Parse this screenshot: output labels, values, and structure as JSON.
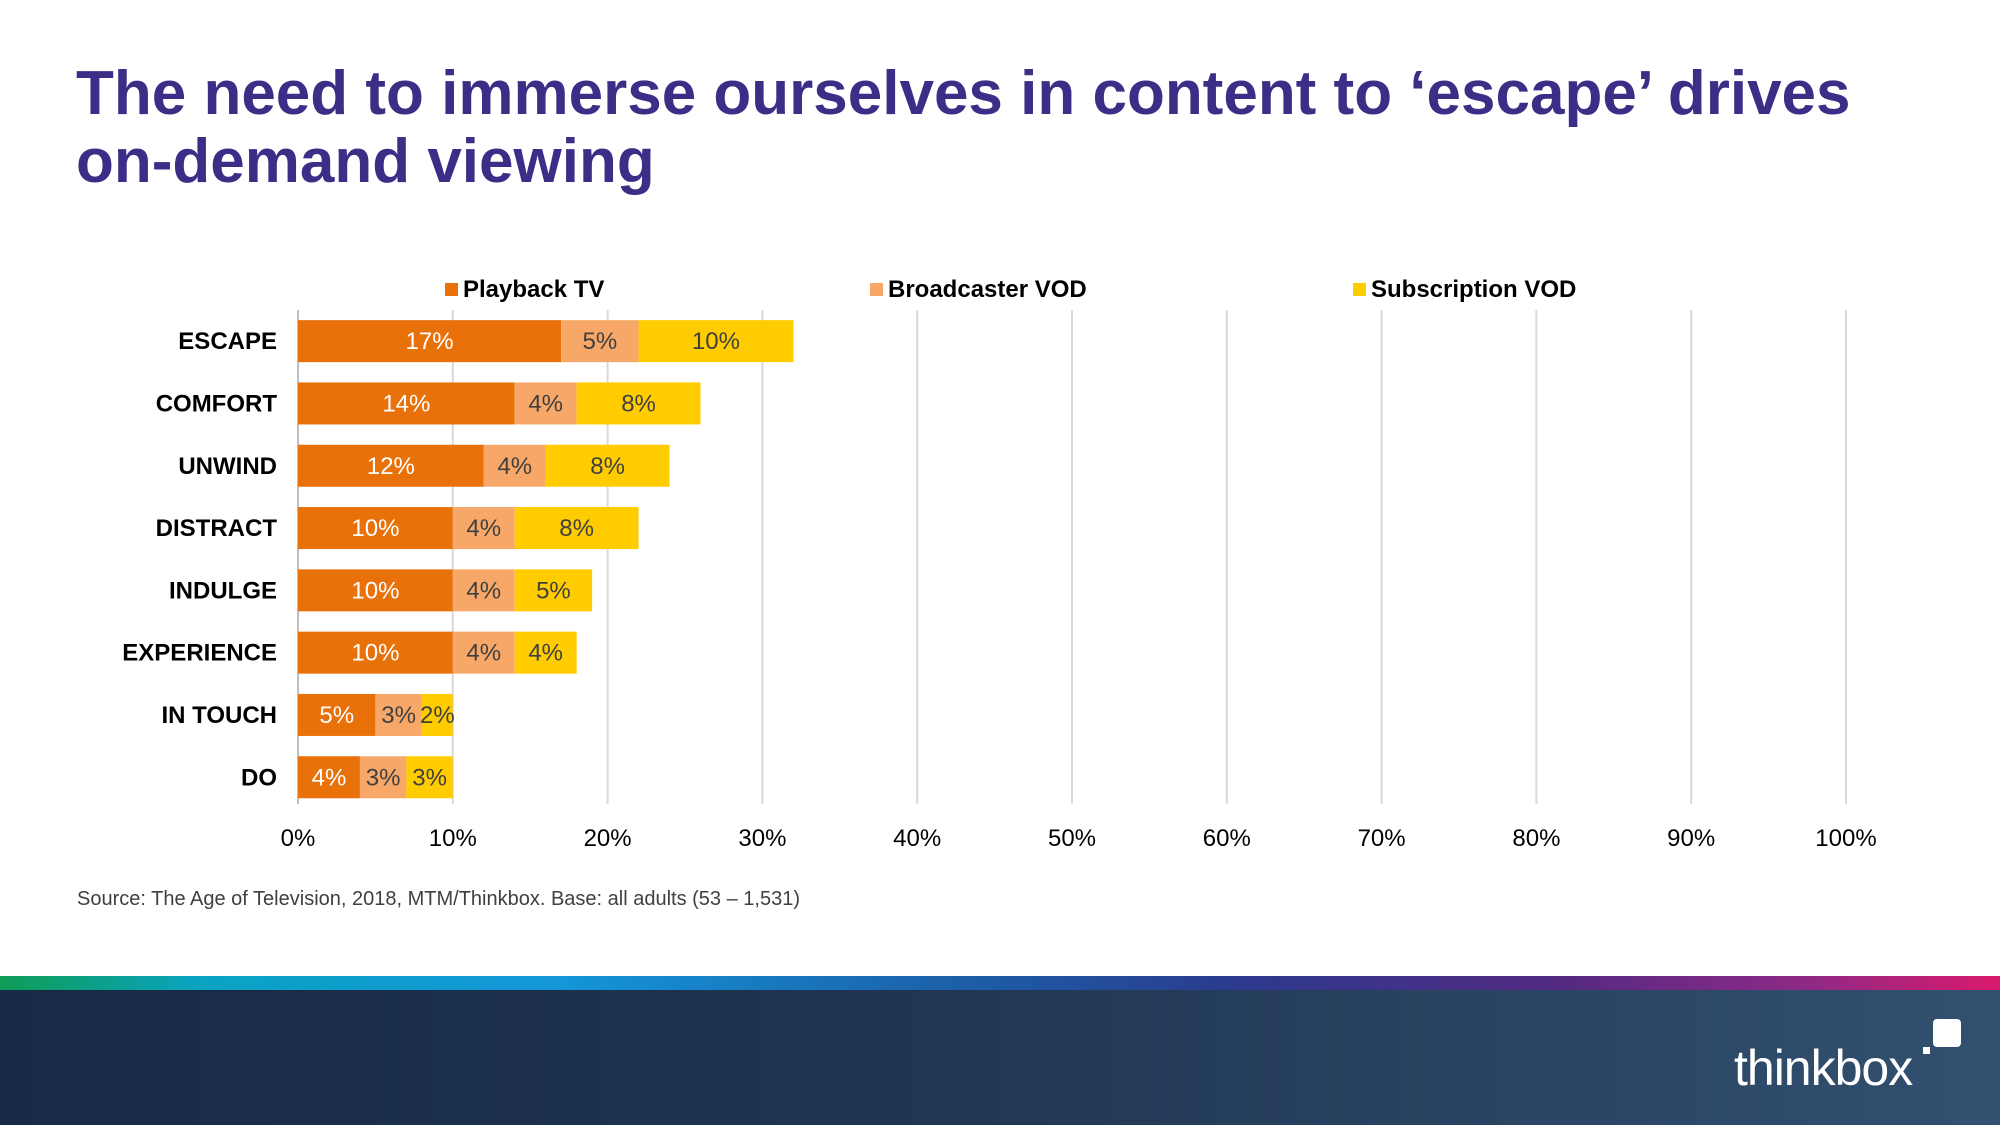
{
  "slide": {
    "title": "The need to immerse ourselves in content to ‘escape’ drives on-demand viewing",
    "source": "Source: The Age of Television, 2018, MTM/Thinkbox.  Base: all adults (53 – 1,531)",
    "logo_text": "thinkbox"
  },
  "chart_data": {
    "type": "bar",
    "orientation": "horizontal",
    "stacked": true,
    "categories": [
      "ESCAPE",
      "COMFORT",
      "UNWIND",
      "DISTRACT",
      "INDULGE",
      "EXPERIENCE",
      "IN TOUCH",
      "DO"
    ],
    "series": [
      {
        "name": "Playback TV",
        "color": "#e8710a",
        "label_color": "#ffffff",
        "values": [
          17,
          14,
          12,
          10,
          10,
          10,
          5,
          4
        ]
      },
      {
        "name": "Broadcaster VOD",
        "color": "#f7a868",
        "label_color": "#404040",
        "values": [
          5,
          4,
          4,
          4,
          4,
          4,
          3,
          3
        ]
      },
      {
        "name": "Subscription VOD",
        "color": "#ffcc00",
        "label_color": "#404040",
        "values": [
          10,
          8,
          8,
          8,
          5,
          4,
          2,
          3
        ]
      }
    ],
    "value_suffix": "%",
    "xlim": [
      0,
      100
    ],
    "x_ticks": [
      "0%",
      "10%",
      "20%",
      "30%",
      "40%",
      "50%",
      "60%",
      "70%",
      "80%",
      "90%",
      "100%"
    ],
    "grid": "vertical",
    "legend": "top"
  }
}
